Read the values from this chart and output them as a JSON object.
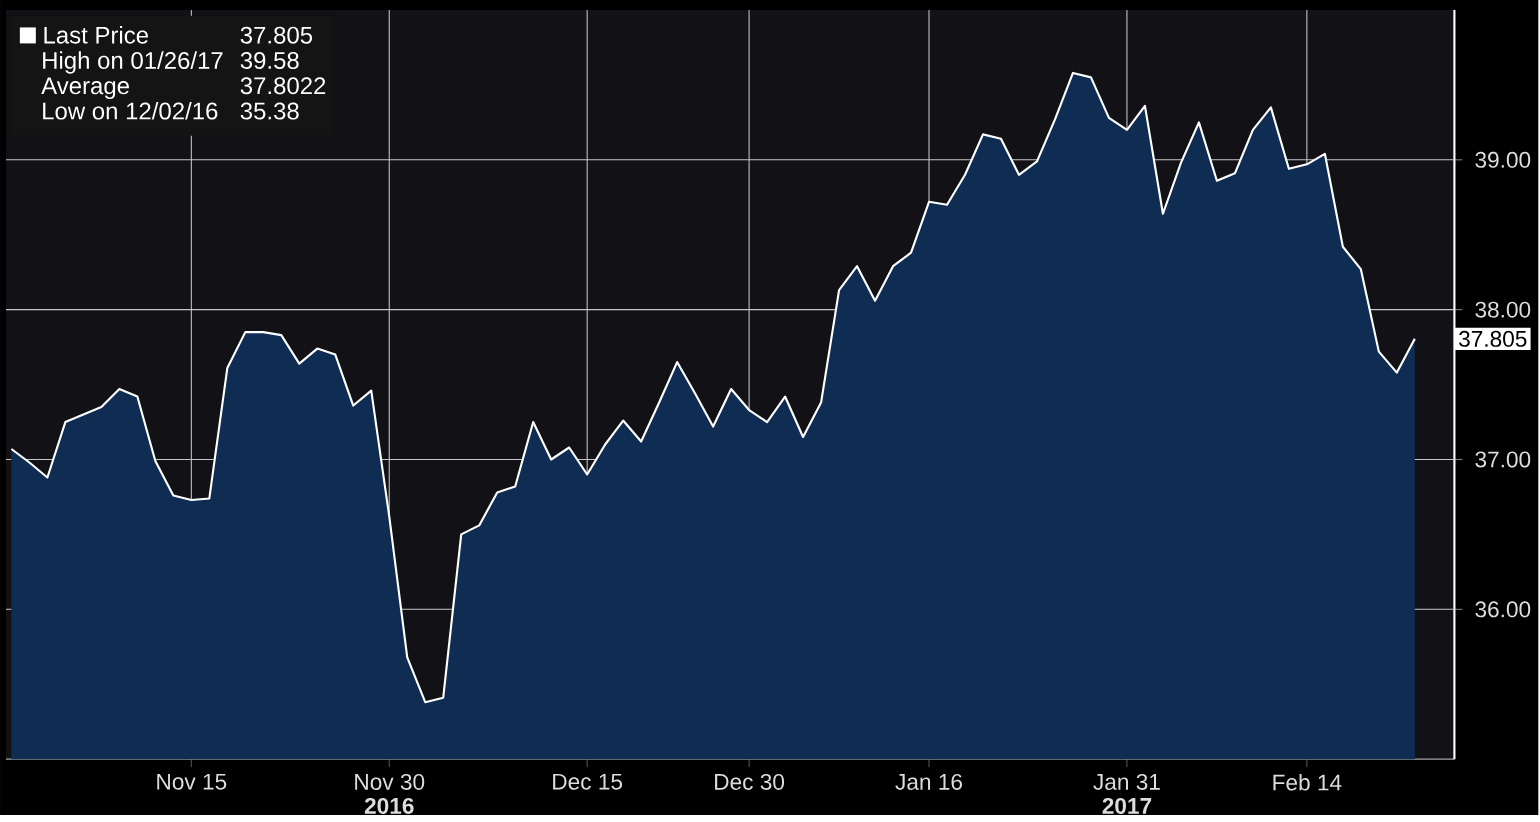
{
  "chart_data": {
    "type": "area",
    "categories": [
      null,
      null,
      null,
      null,
      null,
      null,
      null,
      null,
      null,
      null,
      "Nov 15",
      null,
      null,
      null,
      null,
      null,
      null,
      null,
      null,
      null,
      null,
      "Nov 30",
      null,
      null,
      null,
      null,
      null,
      null,
      null,
      null,
      null,
      null,
      "Dec 15",
      null,
      null,
      null,
      null,
      null,
      null,
      null,
      null,
      "Dec 30",
      null,
      null,
      null,
      null,
      null,
      null,
      null,
      null,
      null,
      "Jan 16",
      null,
      null,
      null,
      null,
      null,
      null,
      null,
      null,
      null,
      null,
      "Jan 31",
      null,
      null,
      null,
      null,
      null,
      null,
      null,
      null,
      null,
      "Feb 14",
      null,
      null,
      null,
      null,
      null,
      null
    ],
    "series": [
      {
        "name": "Last Price",
        "color": "#ffffff",
        "values": [
          37.07,
          36.98,
          36.88,
          37.25,
          37.3,
          37.35,
          37.47,
          37.42,
          36.99,
          36.76,
          36.73,
          36.74,
          37.61,
          37.85,
          37.85,
          37.83,
          37.64,
          37.74,
          37.7,
          37.36,
          37.46,
          36.62,
          35.68,
          35.38,
          35.41,
          36.5,
          36.56,
          36.78,
          36.82,
          37.25,
          37.0,
          37.08,
          36.9,
          37.1,
          37.26,
          37.12,
          37.38,
          37.65,
          37.44,
          37.22,
          37.47,
          37.33,
          37.25,
          37.42,
          37.15,
          37.38,
          38.13,
          38.29,
          38.06,
          38.29,
          38.38,
          38.72,
          38.7,
          38.9,
          39.17,
          39.14,
          38.9,
          38.99,
          39.27,
          39.58,
          39.55,
          39.28,
          39.2,
          39.36,
          38.64,
          38.98,
          39.25,
          38.86,
          38.91,
          39.2,
          39.35,
          38.94,
          38.97,
          39.04,
          38.42,
          38.27,
          37.72,
          37.58,
          37.805
        ]
      }
    ],
    "ylim": [
      35,
      40
    ],
    "yticks": [
      {
        "value": 36,
        "label": "36.00"
      },
      {
        "value": 37,
        "label": "37.00"
      },
      {
        "value": 38,
        "label": "38.00"
      },
      {
        "value": 39,
        "label": "39.00"
      }
    ],
    "grid": true,
    "legend": "top left",
    "annotations": [
      "37.805",
      "High on 01/26/17",
      "39.58",
      "Average",
      "37.8022",
      "Low on 12/02/16",
      "35.38",
      "37.805",
      "2016",
      "2017"
    ]
  }
}
